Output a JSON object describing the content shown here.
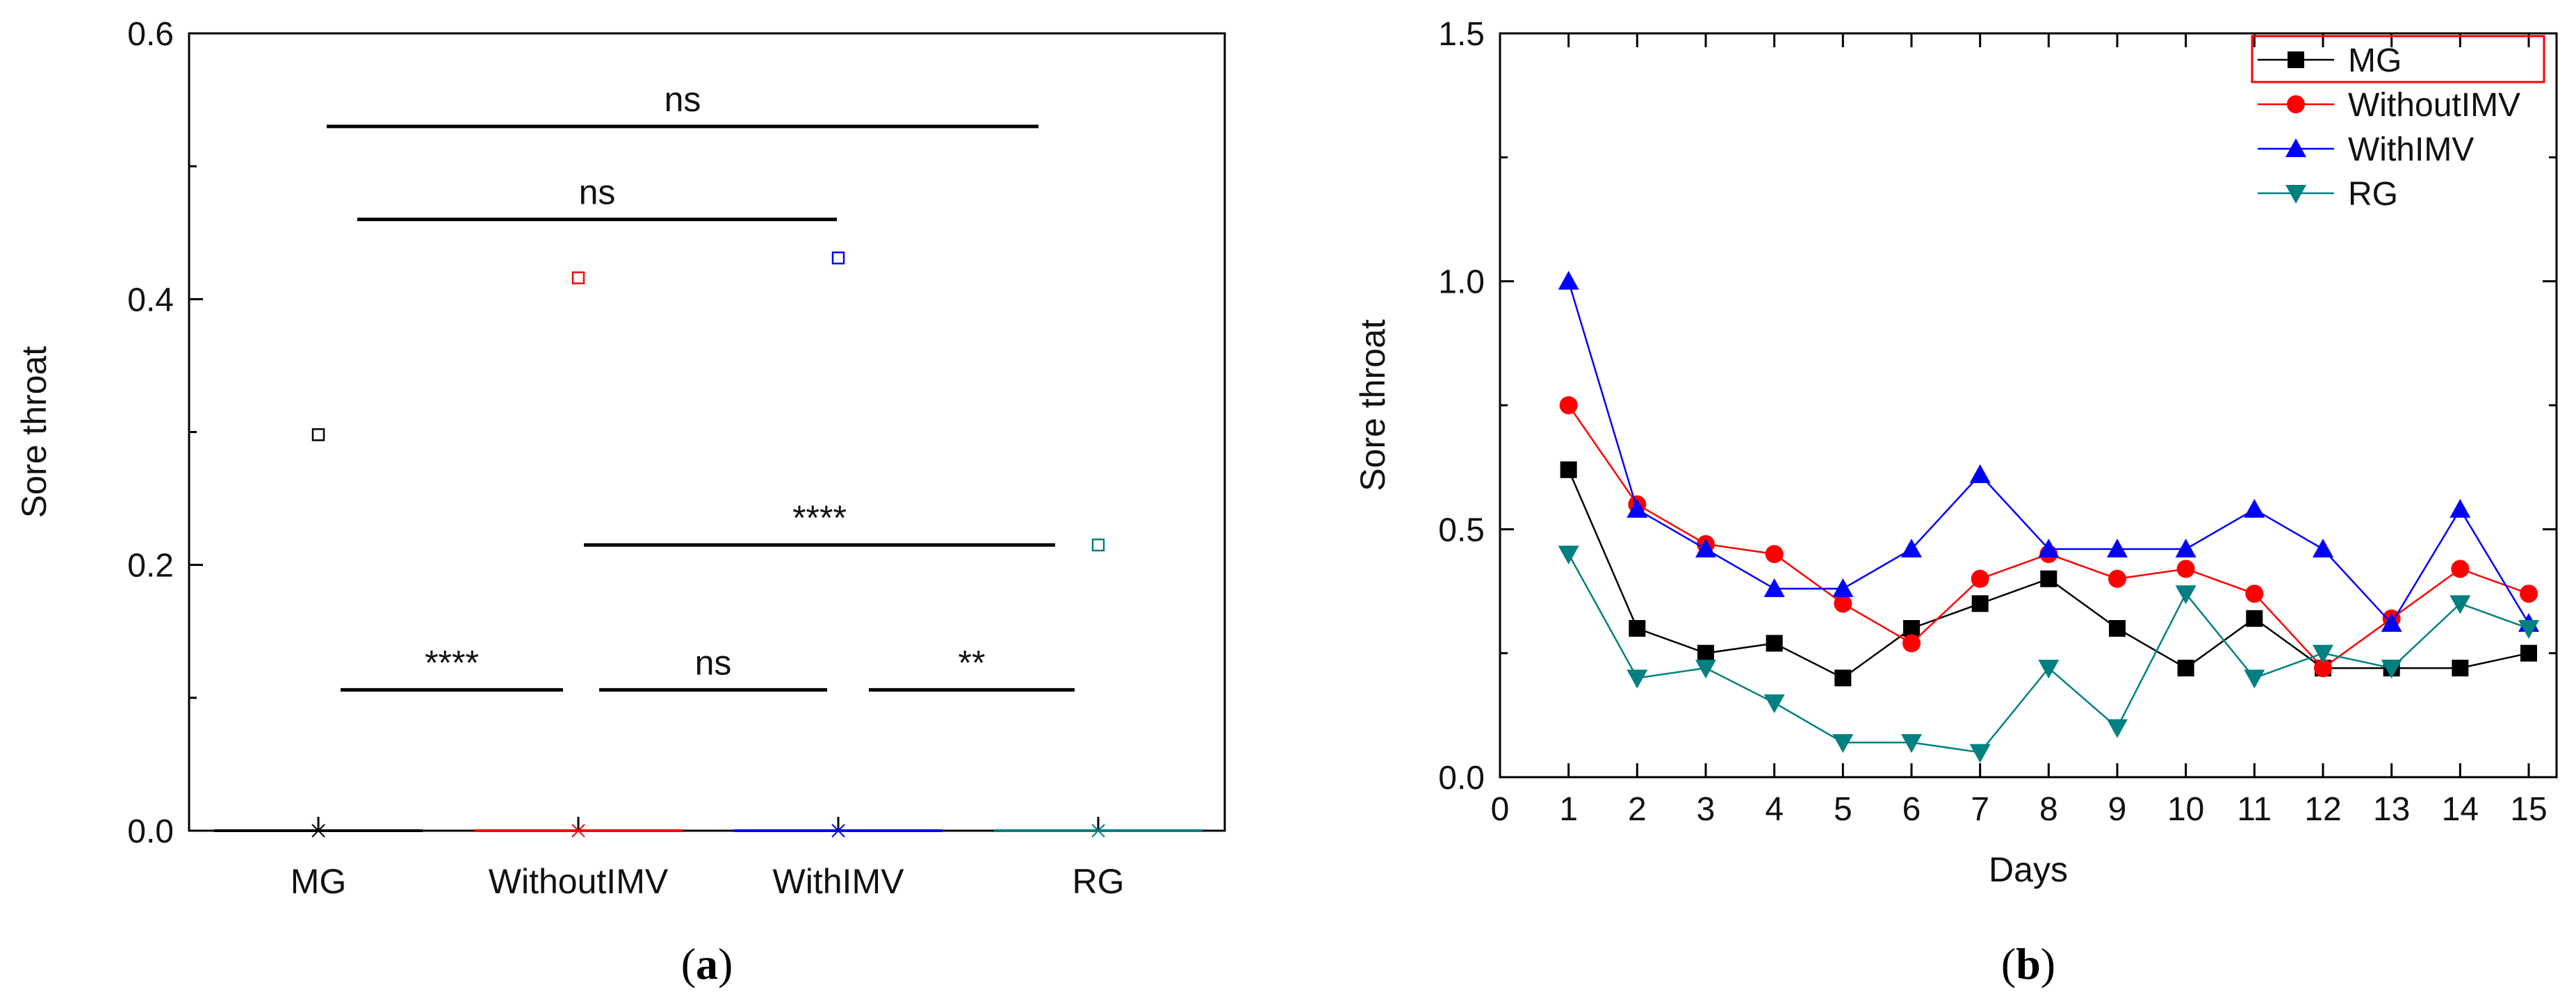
{
  "chart_data": [
    {
      "panel": "(a)",
      "panel_letter": "a",
      "type": "box",
      "ylabel": "Sore throat",
      "ylim": [
        0,
        0.6
      ],
      "yticks": [
        "0.0",
        "0.2",
        "0.4",
        "0.6"
      ],
      "categories": [
        "MG",
        "WithoutIMV",
        "WithIMV",
        "RG"
      ],
      "colors": [
        "#000000",
        "#ff0000",
        "#0000ff",
        "#008080"
      ],
      "medians": [
        0,
        0,
        0,
        0
      ],
      "means": [
        0.298,
        0.416,
        0.431,
        0.215
      ],
      "significance": [
        {
          "from": 0,
          "to": 3,
          "y": 0.53,
          "label": "ns"
        },
        {
          "from": 0,
          "to": 2,
          "y": 0.46,
          "label": "ns"
        },
        {
          "from": 1,
          "to": 3,
          "y": 0.215,
          "label": "****"
        },
        {
          "from": 0,
          "to": 1,
          "y": 0.106,
          "label": "****"
        },
        {
          "from": 1,
          "to": 2,
          "y": 0.106,
          "label": "ns"
        },
        {
          "from": 2,
          "to": 3,
          "y": 0.106,
          "label": "**"
        }
      ]
    },
    {
      "panel": "(b)",
      "panel_letter": "b",
      "type": "line",
      "xlabel": "Days",
      "ylabel": "Sore throat",
      "xlim": [
        0,
        15
      ],
      "ylim": [
        0,
        1.5
      ],
      "x": [
        1,
        2,
        3,
        4,
        5,
        6,
        7,
        8,
        9,
        10,
        11,
        12,
        13,
        14,
        15
      ],
      "xticks": [
        "0",
        "1",
        "2",
        "3",
        "4",
        "5",
        "6",
        "7",
        "8",
        "9",
        "10",
        "11",
        "12",
        "13",
        "14",
        "15"
      ],
      "yticks": [
        "0.0",
        "0.5",
        "1.0",
        "1.5"
      ],
      "legend_position": "top-right",
      "series": [
        {
          "name": "MG",
          "color": "#000000",
          "marker": "square",
          "values": [
            0.62,
            0.3,
            0.25,
            0.27,
            0.2,
            0.3,
            0.35,
            0.4,
            0.3,
            0.22,
            0.32,
            0.22,
            0.22,
            0.22,
            0.25
          ]
        },
        {
          "name": "WithoutIMV",
          "color": "#ff0000",
          "marker": "circle",
          "values": [
            0.75,
            0.55,
            0.47,
            0.45,
            0.35,
            0.27,
            0.4,
            0.45,
            0.4,
            0.42,
            0.37,
            0.22,
            0.32,
            0.42,
            0.37
          ]
        },
        {
          "name": "WithIMV",
          "color": "#0000ff",
          "marker": "triangle-up",
          "values": [
            1.0,
            0.54,
            0.46,
            0.38,
            0.38,
            0.46,
            0.61,
            0.46,
            0.46,
            0.46,
            0.54,
            0.46,
            0.31,
            0.54,
            0.31
          ]
        },
        {
          "name": "RG",
          "color": "#008080",
          "marker": "triangle-down",
          "values": [
            0.45,
            0.2,
            0.22,
            0.15,
            0.07,
            0.07,
            0.05,
            0.22,
            0.1,
            0.37,
            0.2,
            0.25,
            0.22,
            0.35,
            0.3
          ]
        }
      ]
    }
  ]
}
